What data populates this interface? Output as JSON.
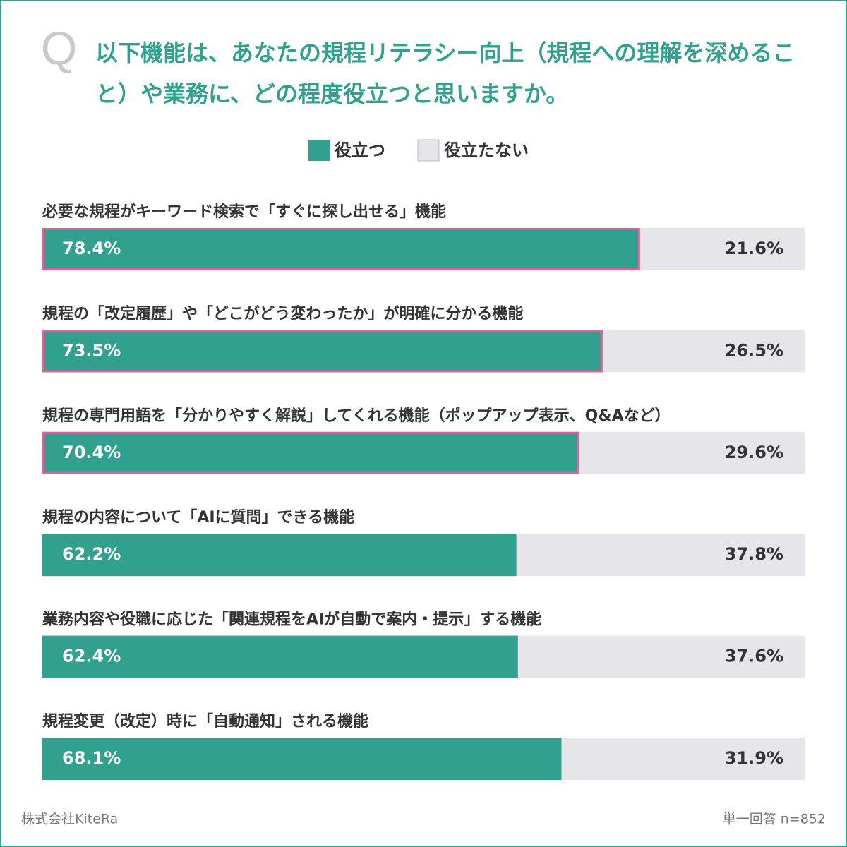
{
  "chart_data": {
    "type": "bar",
    "orientation": "horizontal",
    "stacked": true,
    "q_label": "Q",
    "title": "以下機能は、あなたの規程リテラシー向上（規程への理解を深めること）や業務に、どの程度役立つと思いますか。",
    "categories": [
      "必要な規程がキーワード検索で「すぐに探し出せる」機能",
      "規程の「改定履歴」や「どこがどう変わったか」が明確に分かる機能",
      "規程の専門用語を「分かりやすく解説」してくれる機能（ポップアップ表示、Q&Aなど）",
      "規程の内容について「AIに質問」できる機能",
      "業務内容や役職に応じた「関連規程をAIが自動で案内・提示」する機能",
      "規程変更（改定）時に「自動通知」される機能"
    ],
    "series": [
      {
        "name": "役立つ",
        "color": "#31a08f",
        "values": [
          78.4,
          73.5,
          70.4,
          62.2,
          62.4,
          68.1
        ],
        "value_labels": [
          "78.4%",
          "73.5%",
          "70.4%",
          "62.2%",
          "62.4%",
          "68.1%"
        ]
      },
      {
        "name": "役立たない",
        "color": "#e6e5ea",
        "values": [
          21.6,
          26.5,
          29.6,
          37.8,
          37.6,
          31.9
        ],
        "value_labels": [
          "21.6%",
          "26.5%",
          "29.6%",
          "37.8%",
          "37.6%",
          "31.9%"
        ]
      }
    ],
    "highlight": [
      true,
      true,
      true,
      false,
      false,
      false
    ],
    "highlight_color": "#e0609a",
    "xlim": [
      0,
      100
    ],
    "source": "株式会社KiteRa",
    "note": "単一回答 n=852"
  }
}
